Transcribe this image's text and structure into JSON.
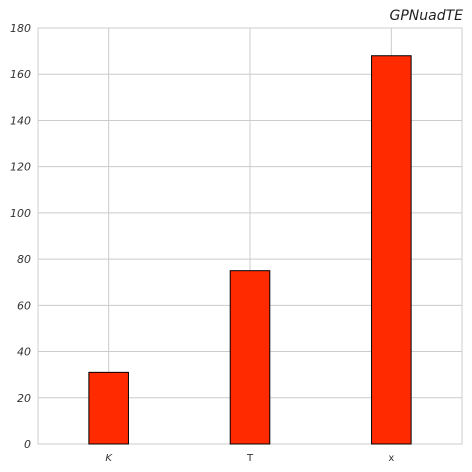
{
  "chart_data": {
    "type": "bar",
    "title": "GPNuadTE",
    "xlabel": "",
    "ylabel": "",
    "categories": [
      "K",
      "T",
      "x"
    ],
    "values": [
      31,
      75,
      168
    ],
    "ylim": [
      0,
      180
    ],
    "yticks": [
      "0",
      "20",
      "40",
      "60",
      "80",
      "100",
      "120",
      "140",
      "160",
      "180"
    ],
    "grid": true,
    "bar_color": "#ff2a00"
  }
}
